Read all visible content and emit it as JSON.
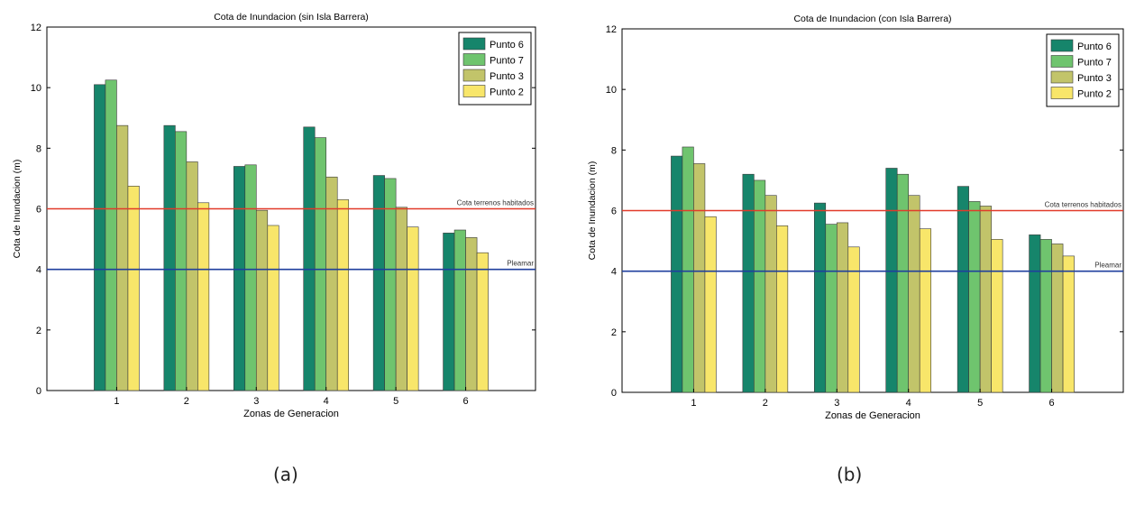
{
  "captions": {
    "a": "(a)",
    "b": "(b)"
  },
  "colors": {
    "Punto 6": "#16856b",
    "Punto 7": "#6fc46e",
    "Punto 3": "#c2c46a",
    "Punto 2": "#f8e66a",
    "habitados_line": "#e23a2a",
    "pleamar_line": "#1f3f9e",
    "axis": "#000000"
  },
  "chart_data": [
    {
      "type": "bar",
      "title": "Cota de Inundacion (sin Isla Barrera)",
      "xlabel": "Zonas de Generacion",
      "ylabel": "Cota de Inundacion (m)",
      "ylim": [
        0,
        12
      ],
      "yticks": [
        "0",
        "2",
        "4",
        "6",
        "8",
        "10",
        "12"
      ],
      "categories": [
        "1",
        "2",
        "3",
        "4",
        "5",
        "6"
      ],
      "legend_position": "top-right",
      "series": [
        {
          "name": "Punto 6",
          "values": [
            10.1,
            8.75,
            7.4,
            8.7,
            7.1,
            5.2
          ]
        },
        {
          "name": "Punto 7",
          "values": [
            10.25,
            8.55,
            7.45,
            8.35,
            7.0,
            5.3
          ]
        },
        {
          "name": "Punto 3",
          "values": [
            8.75,
            7.55,
            5.95,
            7.05,
            6.05,
            5.05
          ]
        },
        {
          "name": "Punto 2",
          "values": [
            6.75,
            6.2,
            5.45,
            6.3,
            5.4,
            4.55
          ]
        }
      ],
      "reference_lines": [
        {
          "label": "Cota terrenos habitados",
          "value": 6.0
        },
        {
          "label": "Pleamar",
          "value": 4.0
        }
      ]
    },
    {
      "type": "bar",
      "title": "Cota de Inundacion (con Isla Barrera)",
      "xlabel": "Zonas de Generacion",
      "ylabel": "Cota de Inundacion (m)",
      "ylim": [
        0,
        12
      ],
      "yticks": [
        "0",
        "2",
        "4",
        "6",
        "8",
        "10",
        "12"
      ],
      "categories": [
        "1",
        "2",
        "3",
        "4",
        "5",
        "6"
      ],
      "legend_position": "top-right",
      "series": [
        {
          "name": "Punto 6",
          "values": [
            7.8,
            7.2,
            6.25,
            7.4,
            6.8,
            5.2
          ]
        },
        {
          "name": "Punto 7",
          "values": [
            8.1,
            7.0,
            5.55,
            7.2,
            6.3,
            5.05
          ]
        },
        {
          "name": "Punto 3",
          "values": [
            7.55,
            6.5,
            5.6,
            6.5,
            6.15,
            4.9
          ]
        },
        {
          "name": "Punto 2",
          "values": [
            5.8,
            5.5,
            4.8,
            5.4,
            5.05,
            4.5
          ]
        }
      ],
      "reference_lines": [
        {
          "label": "Cota terrenos habitados",
          "value": 6.0
        },
        {
          "label": "Pleamar",
          "value": 4.0
        }
      ]
    }
  ]
}
